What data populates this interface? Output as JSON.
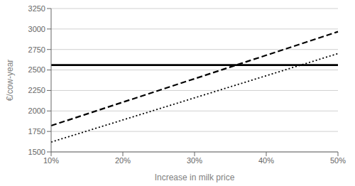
{
  "chart_data": {
    "type": "line",
    "categories": [
      "10%",
      "20%",
      "30%",
      "40%",
      "50%"
    ],
    "series": [
      {
        "color": "black",
        "line_style": "dotted",
        "values": [
          1620,
          1890,
          2160,
          2430,
          2700
        ]
      },
      {
        "color": "black",
        "line_style": "dashed",
        "values": [
          1820,
          2107,
          2393,
          2680,
          2967
        ]
      },
      {
        "color": "black",
        "line_style": "solid",
        "values": [
          2560,
          2560,
          2560,
          2560,
          2560
        ]
      }
    ],
    "xlabel": "Increase in milk price",
    "ylabel": "€/cow-year",
    "ylim": [
      1500,
      3250
    ],
    "yticks": [
      1500,
      1750,
      2000,
      2250,
      2500,
      2750,
      3000,
      3250
    ],
    "grid": true
  }
}
